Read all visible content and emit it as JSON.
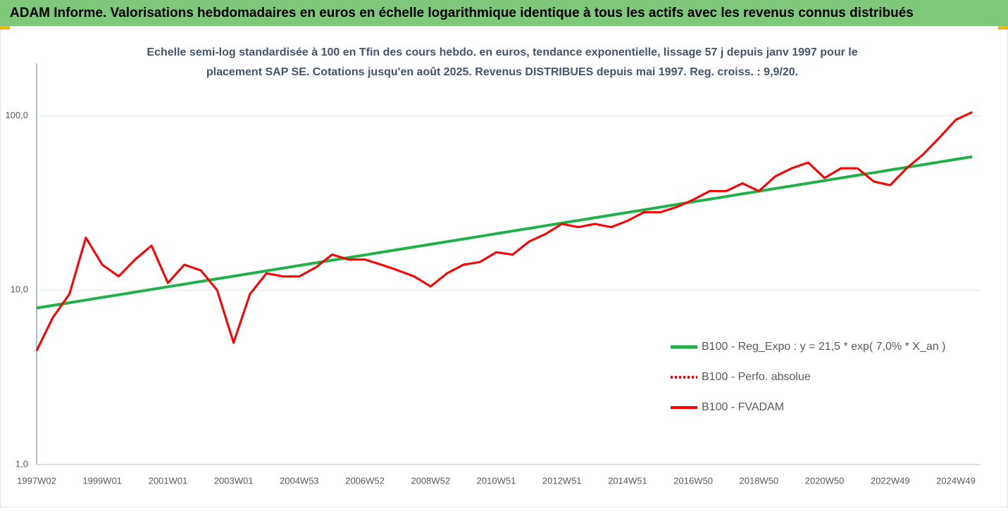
{
  "chart_data": {
    "type": "line",
    "title": "ADAM Informe. Valorisations hebdomadaires en euros en échelle logarithmique identique à tous les actifs avec les revenus connus distribués",
    "subtitle": [
      "Echelle semi-log standardisée à 100 en Tfin des cours hebdo. en euros, tendance exponentielle, lissage 57 j depuis janv 1997 pour le",
      "placement SAP SE. Cotations jusqu'en août 2025. Revenus DISTRIBUES depuis mai 1997. Reg. croiss. : 9,9/20."
    ],
    "categories": [
      "1997W02",
      null,
      null,
      null,
      "1999W01",
      null,
      null,
      null,
      "2001W01",
      null,
      null,
      null,
      "2003W01",
      null,
      null,
      null,
      "2004W53",
      null,
      null,
      null,
      "2006W52",
      null,
      null,
      null,
      "2008W52",
      null,
      null,
      null,
      "2010W51",
      null,
      null,
      null,
      "2012W51",
      null,
      null,
      null,
      "2014W51",
      null,
      null,
      null,
      "2016W50",
      null,
      null,
      null,
      "2018W50",
      null,
      null,
      null,
      "2020W50",
      null,
      null,
      null,
      "2022W49",
      null,
      null,
      null,
      "2024W49",
      null
    ],
    "series": [
      {
        "name": "B100 - Reg_Expo : y = 21,5 * exp( 7,0% *  X_an )",
        "color": "#22b04c",
        "dash": false,
        "width": 4,
        "values": [
          7.9,
          8.18,
          8.47,
          8.78,
          9.09,
          9.41,
          9.75,
          10.1,
          10.46,
          10.83,
          11.22,
          11.62,
          12.03,
          12.46,
          12.91,
          13.37,
          13.85,
          14.34,
          14.85,
          15.38,
          15.93,
          16.5,
          17.09,
          17.7,
          18.33,
          18.98,
          19.66,
          20.36,
          21.09,
          21.84,
          22.62,
          23.43,
          24.26,
          25.13,
          26.03,
          26.95,
          27.92,
          28.91,
          29.94,
          31.01,
          32.12,
          33.26,
          34.45,
          35.68,
          36.95,
          38.27,
          39.63,
          41.05,
          42.51,
          44.03,
          45.6,
          47.22,
          48.91,
          50.65,
          52.46,
          54.33,
          56.26,
          58.27
        ]
      },
      {
        "name": "B100 - Perfo. absolue",
        "color": "#ff0000",
        "dash": true,
        "width": 3,
        "values": [
          4.5,
          7,
          9.5,
          20,
          14,
          12,
          15,
          18,
          11,
          14,
          13,
          10,
          5,
          9.5,
          12.5,
          12,
          12,
          13.5,
          16,
          15,
          15,
          14,
          13,
          12,
          10.5,
          12.5,
          14,
          14.5,
          16.5,
          16,
          19,
          21,
          24,
          23,
          24,
          23,
          25,
          28,
          28,
          30,
          33,
          37,
          37,
          41,
          37,
          45,
          50,
          54,
          44,
          50,
          50,
          42,
          40,
          50,
          60,
          75,
          95,
          105
        ]
      },
      {
        "name": "B100 - FVADAM",
        "color": "#ff0000",
        "dash": false,
        "width": 3,
        "values": [
          4.5,
          7,
          9.5,
          20,
          14,
          12,
          15,
          18,
          11,
          14,
          13,
          10,
          5,
          9.5,
          12.5,
          12,
          12,
          13.5,
          16,
          15,
          15,
          14,
          13,
          12,
          10.5,
          12.5,
          14,
          14.5,
          16.5,
          16,
          19,
          21,
          24,
          23,
          24,
          23,
          25,
          28,
          28,
          30,
          33,
          37,
          37,
          41,
          37,
          45,
          50,
          54,
          44,
          50,
          50,
          42,
          40,
          50,
          60,
          75,
          95,
          105
        ]
      }
    ],
    "log_y": true,
    "ylim": [
      1,
      200
    ],
    "yticks": [
      {
        "value": 1,
        "label": "1,0"
      },
      {
        "value": 10,
        "label": "10,0"
      },
      {
        "value": 100,
        "label": "100,0"
      }
    ],
    "grid": true,
    "legend": "right"
  }
}
